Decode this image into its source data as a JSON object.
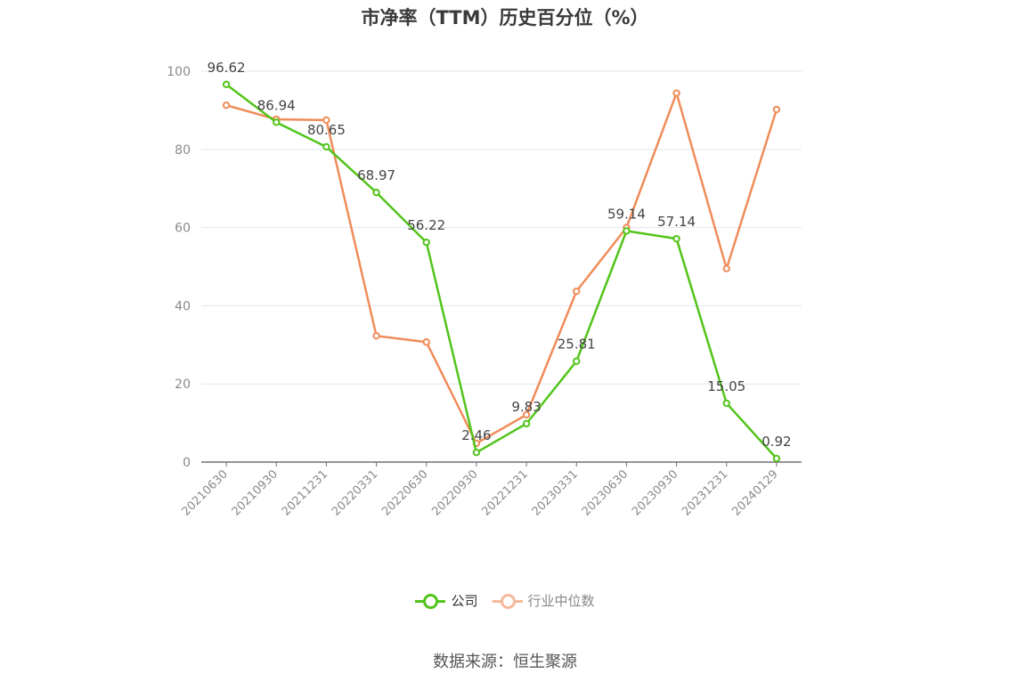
{
  "chart_data": {
    "type": "line",
    "title": "市净率（TTM）历史百分位（%）",
    "categories": [
      "20210630",
      "20210930",
      "20211231",
      "20220331",
      "20220630",
      "20220930",
      "20221231",
      "20230331",
      "20230630",
      "20230930",
      "20231231",
      "20240129"
    ],
    "ylim": [
      0,
      100
    ],
    "yticks": [
      "0",
      "20",
      "40",
      "60",
      "80",
      "100"
    ],
    "series": [
      {
        "name": "公司",
        "color": "#52c41a",
        "values": [
          96.62,
          86.94,
          80.65,
          68.97,
          56.22,
          2.46,
          9.83,
          25.81,
          59.14,
          57.14,
          15.05,
          0.92
        ],
        "labels": [
          "96.62",
          "86.94",
          "80.65",
          "68.97",
          "56.22",
          "2.46",
          "9.83",
          "25.81",
          "59.14",
          "57.14",
          "15.05",
          "0.92"
        ]
      },
      {
        "name": "行业中位数",
        "color": "#f08c5a",
        "values": [
          91.3,
          87.7,
          87.5,
          32.3,
          30.7,
          4.8,
          12.1,
          43.7,
          60.0,
          94.4,
          49.5,
          90.2
        ]
      }
    ],
    "legend_position": "bottom",
    "grid": true
  },
  "source": "数据来源：恒生聚源",
  "colors": {
    "axis": "#6e7079",
    "grid": "#e0e6f1",
    "legend_muted": "#f6b89b"
  }
}
